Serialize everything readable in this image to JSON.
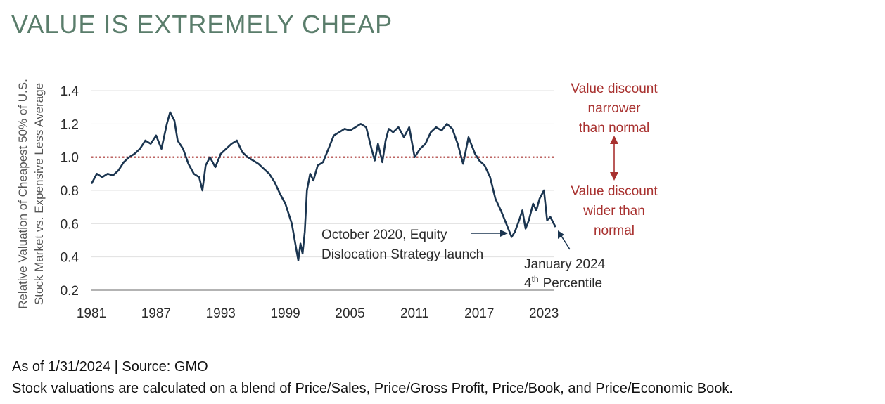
{
  "title": "VALUE IS EXTREMELY CHEAP",
  "footer": {
    "line1": "As of 1/31/2024 | Source: GMO",
    "line2": "Stock valuations are calculated on a blend of Price/Sales, Price/Gross Profit, Price/Book, and Price/Economic Book."
  },
  "chart_data": {
    "type": "line",
    "ylabel_lines": [
      "Relative Valuation of Cheapest 50% of U.S.",
      "Stock Market vs. Expensive Less Average"
    ],
    "ylim": [
      0.2,
      1.4
    ],
    "xlim": [
      1981,
      2024.1
    ],
    "yticks": [
      "0.2",
      "0.4",
      "0.6",
      "0.8",
      "1.0",
      "1.2",
      "1.4"
    ],
    "xticks": [
      "1981",
      "1987",
      "1993",
      "1999",
      "2005",
      "2011",
      "2017",
      "2023"
    ],
    "reference_line": {
      "y": 1.0,
      "color": "#a8312f",
      "style": "dotted"
    },
    "line_color": "#1b3550",
    "grid": true,
    "series": [
      {
        "x": [
          1981,
          1981.5,
          1982,
          1982.5,
          1983,
          1983.5,
          1984,
          1984.5,
          1985,
          1985.5,
          1986,
          1986.5,
          1987,
          1987.5,
          1988,
          1988.3,
          1988.7,
          1989,
          1989.5,
          1990,
          1990.5,
          1991,
          1991.3,
          1991.6,
          1992,
          1992.5,
          1993,
          1993.5,
          1994,
          1994.5,
          1995,
          1995.5,
          1996,
          1996.5,
          1997,
          1997.5,
          1998,
          1998.5,
          1999,
          1999.3,
          1999.6,
          2000,
          2000.2,
          2000.4,
          2000.6,
          2000.8,
          2001,
          2001.3,
          2001.6,
          2002,
          2002.5,
          2003,
          2003.5,
          2004,
          2004.5,
          2005,
          2005.5,
          2006,
          2006.5,
          2007,
          2007.3,
          2007.6,
          2008,
          2008.3,
          2008.6,
          2009,
          2009.5,
          2010,
          2010.5,
          2011,
          2011.5,
          2012,
          2012.5,
          2013,
          2013.5,
          2014,
          2014.5,
          2015,
          2015.5,
          2016,
          2016.3,
          2016.6,
          2017,
          2017.5,
          2018,
          2018.5,
          2019,
          2019.5,
          2020,
          2020.3,
          2020.7,
          2021,
          2021.3,
          2021.6,
          2022,
          2022.3,
          2022.6,
          2023,
          2023.3,
          2023.6,
          2024.08
        ],
        "y": [
          0.84,
          0.9,
          0.88,
          0.9,
          0.89,
          0.92,
          0.97,
          1.0,
          1.02,
          1.05,
          1.1,
          1.08,
          1.13,
          1.05,
          1.2,
          1.27,
          1.22,
          1.1,
          1.05,
          0.96,
          0.9,
          0.88,
          0.8,
          0.95,
          1.0,
          0.94,
          1.02,
          1.05,
          1.08,
          1.1,
          1.03,
          1.0,
          0.98,
          0.96,
          0.93,
          0.9,
          0.85,
          0.78,
          0.72,
          0.66,
          0.6,
          0.45,
          0.38,
          0.48,
          0.42,
          0.55,
          0.8,
          0.9,
          0.86,
          0.95,
          0.97,
          1.05,
          1.13,
          1.15,
          1.17,
          1.16,
          1.18,
          1.2,
          1.18,
          1.05,
          0.98,
          1.08,
          0.97,
          1.1,
          1.17,
          1.15,
          1.18,
          1.12,
          1.18,
          1.0,
          1.05,
          1.08,
          1.15,
          1.18,
          1.16,
          1.2,
          1.17,
          1.08,
          0.96,
          1.12,
          1.07,
          1.02,
          0.98,
          0.95,
          0.88,
          0.75,
          0.68,
          0.6,
          0.52,
          0.55,
          0.62,
          0.68,
          0.57,
          0.62,
          0.72,
          0.68,
          0.75,
          0.8,
          0.62,
          0.64,
          0.58
        ]
      }
    ],
    "annotations": [
      {
        "lines": [
          "October 2020, Equity",
          "Dislocation Strategy launch"
        ]
      },
      {
        "lines": [
          "January 2024",
          "Percentile"
        ],
        "prefix": "4",
        "superscript": "th"
      },
      {
        "lines": [
          "Value discount",
          "narrower",
          "than normal"
        ],
        "color": "#a8312f"
      },
      {
        "lines": [
          "Value discount",
          "wider than",
          "normal"
        ],
        "color": "#a8312f"
      }
    ]
  }
}
